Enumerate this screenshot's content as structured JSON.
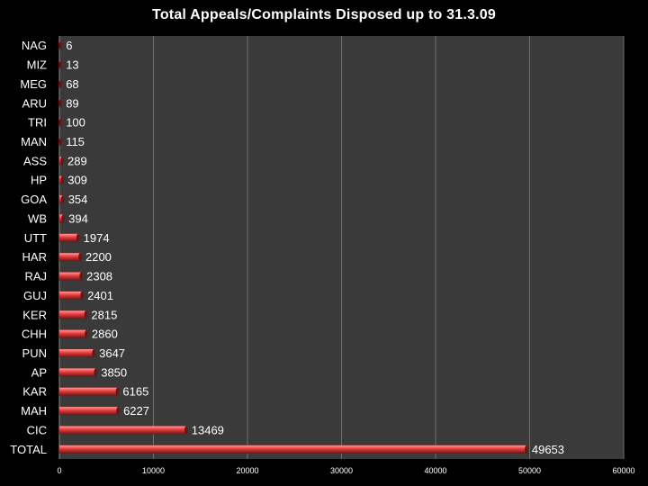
{
  "chart_data": {
    "type": "bar",
    "orientation": "horizontal",
    "title": "Total Appeals/Complaints Disposed up to 31.3.09",
    "categories": [
      "NAG",
      "MIZ",
      "MEG",
      "ARU",
      "TRI",
      "MAN",
      "ASS",
      "HP",
      "GOA",
      "WB",
      "UTT",
      "HAR",
      "RAJ",
      "GUJ",
      "KER",
      "CHH",
      "PUN",
      "AP",
      "KAR",
      "MAH",
      "CIC",
      "TOTAL"
    ],
    "values": [
      6,
      13,
      68,
      89,
      100,
      115,
      289,
      309,
      354,
      394,
      1974,
      2200,
      2308,
      2401,
      2815,
      2860,
      3647,
      3850,
      6165,
      6227,
      13469,
      49653
    ],
    "xlim": [
      0,
      60000
    ],
    "xticks": [
      0,
      10000,
      20000,
      30000,
      40000,
      50000,
      60000
    ],
    "xlabel": "",
    "ylabel": "",
    "grid": true,
    "colors": {
      "background": "#000000",
      "plot_area": "#3a3a3a",
      "grid": "#6e6e6e",
      "bar_light": "#ff9a9a",
      "bar_mid": "#e23a3a",
      "bar_dark": "#7a0f0f",
      "text": "#ffffff"
    }
  }
}
